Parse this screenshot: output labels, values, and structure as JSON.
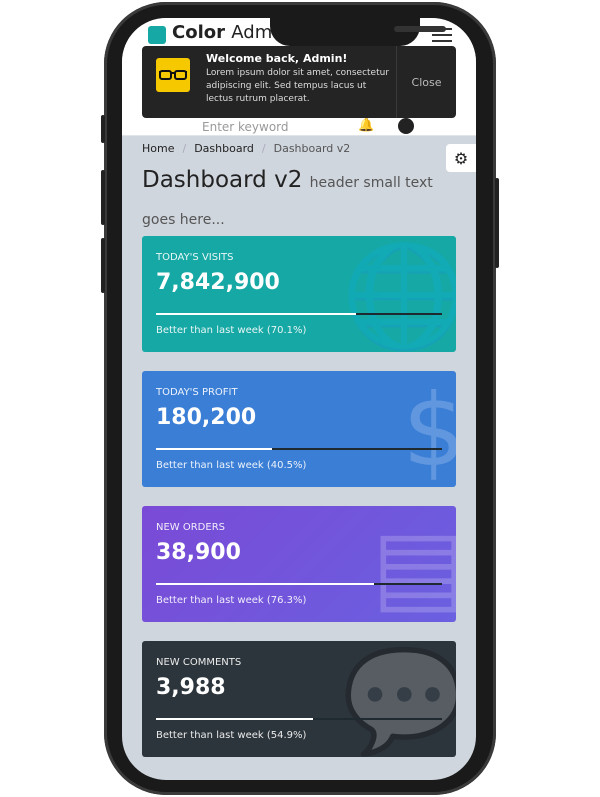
{
  "header": {
    "brand_bold": "Color",
    "brand_light": "Admin",
    "search_placeholder": "Enter keyword"
  },
  "toast": {
    "title": "Welcome back, Admin!",
    "message": "Lorem ipsum dolor sit amet, consectetur adipiscing elit. Sed tempus lacus ut lectus rutrum placerat.",
    "close_label": "Close"
  },
  "breadcrumb": [
    "Home",
    "Dashboard",
    "Dashboard v2"
  ],
  "page": {
    "title": "Dashboard v2",
    "subtitle": "header small text goes here..."
  },
  "cards": [
    {
      "label": "Today's Visits",
      "value": "7,842,900",
      "note": "Better than last week (70.1%)",
      "progress": 70.1,
      "color": "#16a8a4",
      "icon": "globe-icon"
    },
    {
      "label": "Today's Profit",
      "value": "180,200",
      "note": "Better than last week (40.5%)",
      "progress": 40.5,
      "color": "#3a7ed6",
      "icon": "dollar-icon"
    },
    {
      "label": "New Orders",
      "value": "38,900",
      "note": "Better than last week (76.3%)",
      "progress": 76.3,
      "color": "#7150d9",
      "icon": "archive-icon"
    },
    {
      "label": "New Comments",
      "value": "3,988",
      "note": "Better than last week (54.9%)",
      "progress": 54.9,
      "color": "#2d353c",
      "icon": "comments-icon"
    }
  ]
}
